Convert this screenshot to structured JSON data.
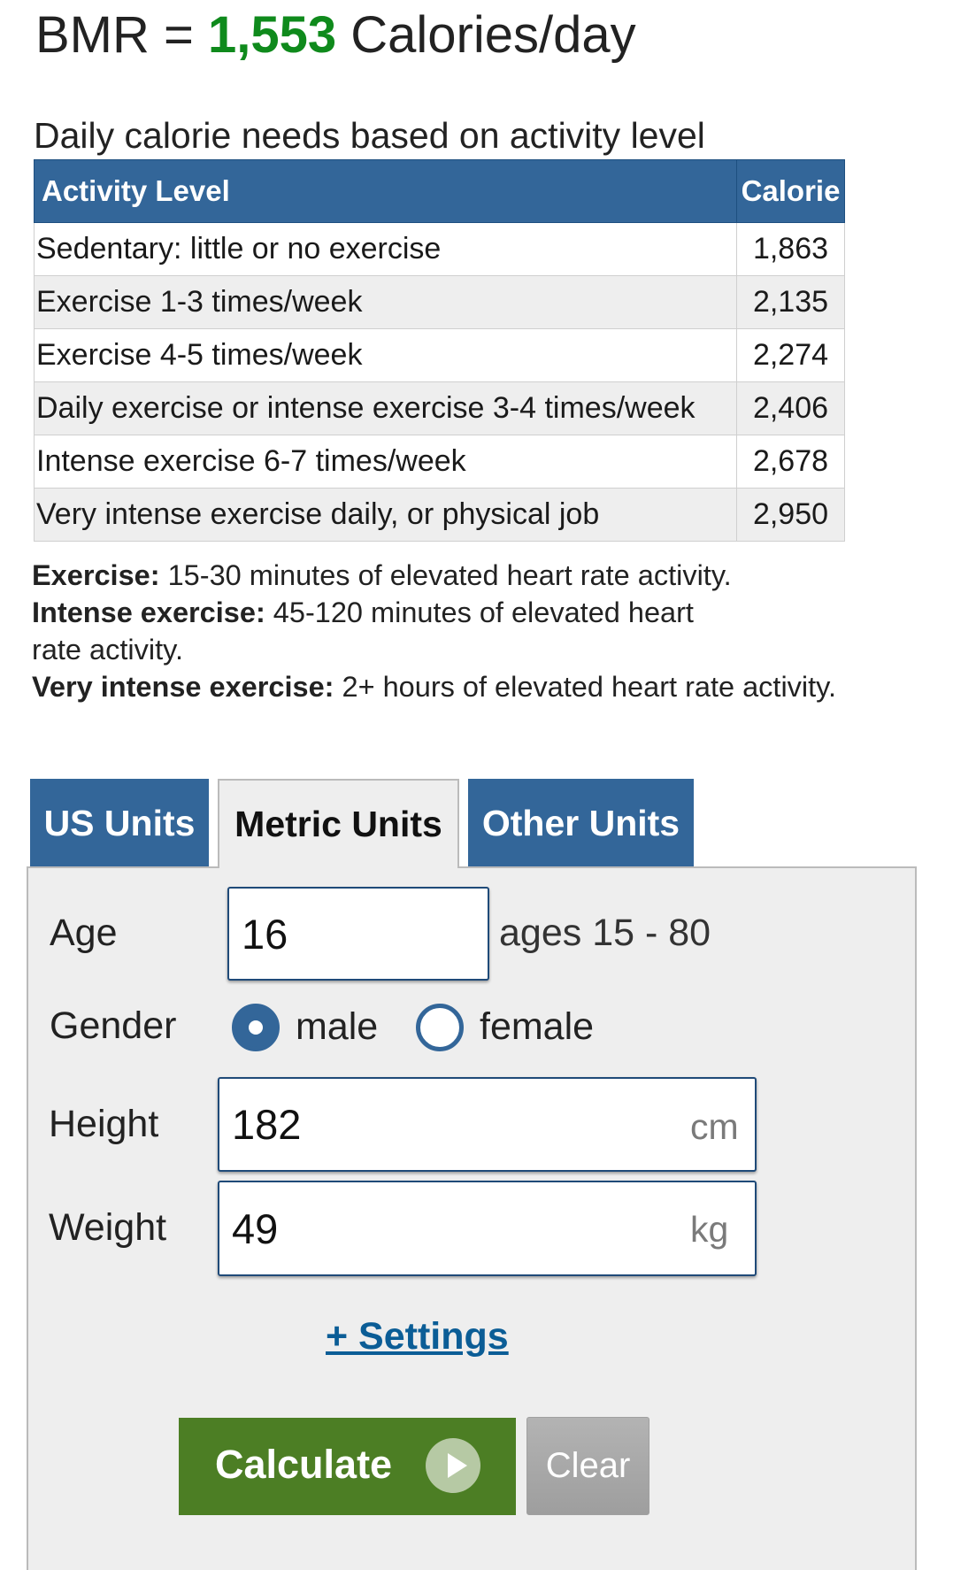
{
  "result": {
    "prefix": "BMR = ",
    "value": "1,553",
    "suffix": " Calories/day",
    "value_color": "#0f8a1c"
  },
  "activity_table": {
    "caption": "Daily calorie needs based on activity level",
    "headers": [
      "Activity Level",
      "Calorie"
    ],
    "rows": [
      {
        "activity": "Sedentary: little or no exercise",
        "calorie": "1,863"
      },
      {
        "activity": "Exercise 1-3 times/week",
        "calorie": "2,135"
      },
      {
        "activity": "Exercise 4-5 times/week",
        "calorie": "2,274"
      },
      {
        "activity": "Daily exercise or intense exercise 3-4 times/week",
        "calorie": "2,406"
      },
      {
        "activity": "Intense exercise 6-7 times/week",
        "calorie": "2,678"
      },
      {
        "activity": "Very intense exercise daily, or physical job",
        "calorie": "2,950"
      }
    ],
    "header_color": "#336699"
  },
  "notes": [
    {
      "term": "Exercise:",
      "text": " 15-30 minutes of elevated heart rate activity."
    },
    {
      "term": "Intense exercise:",
      "text": " 45-120 minutes of elevated heart rate activity."
    },
    {
      "term": "Very intense exercise:",
      "text": " 2+ hours of elevated heart rate activity."
    }
  ],
  "tabs": [
    {
      "label": "US Units",
      "active": false
    },
    {
      "label": "Metric Units",
      "active": true
    },
    {
      "label": "Other Units",
      "active": false
    }
  ],
  "form": {
    "age": {
      "label": "Age",
      "value": "16",
      "hint": "ages 15 - 80"
    },
    "gender": {
      "label": "Gender",
      "options": [
        {
          "label": "male",
          "checked": true
        },
        {
          "label": "female",
          "checked": false
        }
      ]
    },
    "height": {
      "label": "Height",
      "value": "182",
      "unit": "cm"
    },
    "weight": {
      "label": "Weight",
      "value": "49",
      "unit": "kg"
    },
    "settings_link": "+ Settings",
    "calculate_label": "Calculate",
    "clear_label": "Clear",
    "accent_color": "#336699",
    "calculate_color": "#4c7e24"
  },
  "icons": {
    "calculate": "play-circle-icon"
  }
}
